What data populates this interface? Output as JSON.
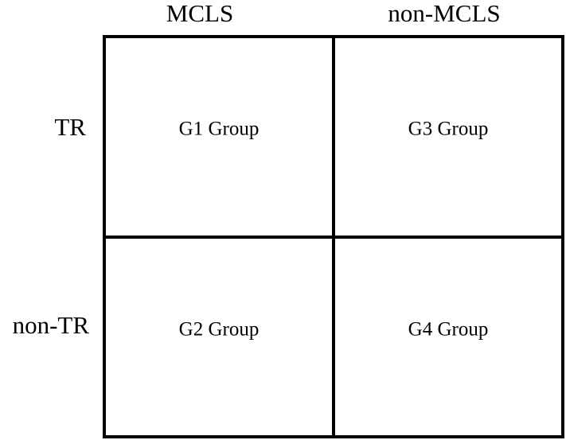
{
  "columns": [
    "MCLS",
    "non-MCLS"
  ],
  "rows": [
    {
      "label": "TR",
      "cells": [
        "G1 Group",
        "G3 Group"
      ]
    },
    {
      "label": "non-TR",
      "cells": [
        "G2 Group",
        "G4 Group"
      ]
    }
  ]
}
